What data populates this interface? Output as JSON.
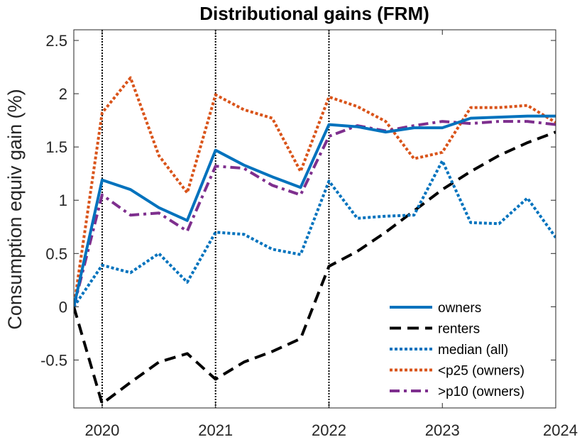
{
  "chart_data": {
    "type": "line",
    "title": "Distributional gains (FRM)",
    "xlabel": "",
    "ylabel": "Consumption equiv gain (%)",
    "xlim": [
      2019.75,
      2024
    ],
    "ylim": [
      -0.95,
      2.6
    ],
    "xticks": [
      2020,
      2021,
      2022,
      2023,
      2024
    ],
    "xtick_labels": [
      "2020",
      "2021",
      "2022",
      "2023",
      "2024"
    ],
    "yticks": [
      -0.5,
      0,
      0.5,
      1,
      1.5,
      2,
      2.5
    ],
    "ytick_labels": [
      "-0.5",
      "0",
      "0.5",
      "1",
      "1.5",
      "2",
      "2.5"
    ],
    "vlines": [
      2020,
      2021,
      2022
    ],
    "x": [
      2019.75,
      2020,
      2020.25,
      2020.5,
      2020.75,
      2021,
      2021.25,
      2021.5,
      2021.75,
      2022,
      2022.25,
      2022.5,
      2022.75,
      2023,
      2023.25,
      2023.5,
      2023.75,
      2024
    ],
    "series": [
      {
        "name": "owners",
        "color": "#0072BD",
        "style": "solid",
        "values": [
          0,
          1.19,
          1.1,
          0.93,
          0.81,
          1.47,
          1.33,
          1.22,
          1.12,
          1.71,
          1.69,
          1.64,
          1.68,
          1.68,
          1.77,
          1.78,
          1.79,
          1.79
        ]
      },
      {
        "name": "renters",
        "color": "#000000",
        "style": "dashed",
        "values": [
          0,
          -0.91,
          -0.71,
          -0.52,
          -0.44,
          -0.68,
          -0.52,
          -0.42,
          -0.3,
          0.38,
          0.52,
          0.7,
          0.9,
          1.1,
          1.27,
          1.42,
          1.54,
          1.64
        ]
      },
      {
        "name": "median (all)",
        "color": "#0072BD",
        "style": "dotted",
        "values": [
          0,
          0.39,
          0.32,
          0.5,
          0.23,
          0.7,
          0.68,
          0.54,
          0.49,
          1.18,
          0.83,
          0.85,
          0.86,
          1.37,
          0.79,
          0.78,
          1.02,
          0.65
        ]
      },
      {
        "name": "<p25 (owners)",
        "color": "#D95319",
        "style": "dotted",
        "values": [
          0,
          1.82,
          2.15,
          1.42,
          1.07,
          1.99,
          1.85,
          1.77,
          1.27,
          1.97,
          1.88,
          1.74,
          1.39,
          1.45,
          1.87,
          1.87,
          1.89,
          1.73
        ]
      },
      {
        "name": ">p10 (owners)",
        "color": "#7E2F8E",
        "style": "dashdot",
        "values": [
          0,
          1.05,
          0.86,
          0.88,
          0.71,
          1.32,
          1.3,
          1.14,
          1.05,
          1.6,
          1.7,
          1.65,
          1.7,
          1.74,
          1.72,
          1.74,
          1.74,
          1.71
        ]
      }
    ],
    "legend": {
      "location": "bottom-right"
    }
  }
}
